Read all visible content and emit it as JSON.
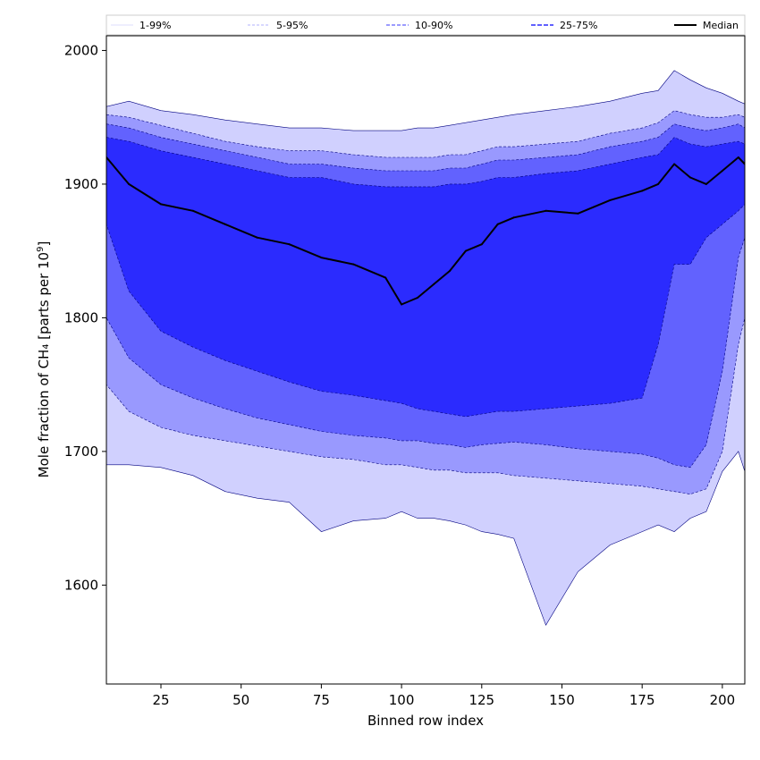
{
  "chart_data": {
    "type": "area",
    "title": "",
    "xlabel": "Binned row index",
    "ylabel_main": "Mole fraction of CH₄ [parts per 10",
    "ylabel_sup": "9",
    "ylabel_tail": "]",
    "xlim": [
      8,
      207
    ],
    "ylim": [
      1526,
      2011
    ],
    "xticks": [
      25,
      50,
      75,
      100,
      125,
      150,
      175,
      200
    ],
    "yticks": [
      1600,
      1700,
      1800,
      1900,
      2000
    ],
    "legend_position": "top",
    "colors": {
      "band_1_99": "#d0d0fe",
      "band_5_95": "#9999fe",
      "band_10_90": "#6262fe",
      "band_25_75": "#2b2bfe",
      "median": "#000000",
      "edge": "#000080"
    },
    "series": [
      {
        "name": "1-99%",
        "role": "band"
      },
      {
        "name": "5-95%",
        "role": "band"
      },
      {
        "name": "10-90%",
        "role": "band"
      },
      {
        "name": "25-75%",
        "role": "band"
      },
      {
        "name": "Median",
        "role": "line"
      }
    ],
    "x": [
      8,
      15,
      25,
      35,
      45,
      55,
      65,
      75,
      85,
      95,
      100,
      105,
      110,
      115,
      120,
      125,
      130,
      135,
      145,
      155,
      165,
      175,
      180,
      185,
      190,
      195,
      200,
      205,
      207
    ],
    "median": [
      1920,
      1900,
      1885,
      1880,
      1870,
      1860,
      1855,
      1845,
      1840,
      1830,
      1810,
      1815,
      1825,
      1835,
      1850,
      1855,
      1870,
      1875,
      1880,
      1878,
      1888,
      1895,
      1900,
      1915,
      1905,
      1900,
      1910,
      1920,
      1915
    ],
    "p75": [
      1935,
      1932,
      1925,
      1920,
      1915,
      1910,
      1905,
      1905,
      1900,
      1898,
      1898,
      1898,
      1898,
      1900,
      1900,
      1902,
      1905,
      1905,
      1908,
      1910,
      1915,
      1920,
      1922,
      1935,
      1930,
      1928,
      1930,
      1932,
      1930
    ],
    "p25": [
      1870,
      1820,
      1790,
      1778,
      1768,
      1760,
      1752,
      1745,
      1742,
      1738,
      1736,
      1732,
      1730,
      1728,
      1726,
      1728,
      1730,
      1730,
      1732,
      1734,
      1736,
      1740,
      1780,
      1840,
      1840,
      1860,
      1870,
      1880,
      1885
    ],
    "p90": [
      1945,
      1942,
      1935,
      1930,
      1925,
      1920,
      1915,
      1915,
      1912,
      1910,
      1910,
      1910,
      1910,
      1912,
      1912,
      1915,
      1918,
      1918,
      1920,
      1922,
      1928,
      1932,
      1935,
      1945,
      1942,
      1940,
      1942,
      1945,
      1942
    ],
    "p10": [
      1800,
      1770,
      1750,
      1740,
      1732,
      1725,
      1720,
      1715,
      1712,
      1710,
      1708,
      1708,
      1706,
      1705,
      1703,
      1705,
      1706,
      1707,
      1705,
      1702,
      1700,
      1698,
      1695,
      1690,
      1688,
      1705,
      1760,
      1845,
      1860
    ],
    "p95": [
      1952,
      1950,
      1944,
      1938,
      1932,
      1928,
      1925,
      1925,
      1922,
      1920,
      1920,
      1920,
      1920,
      1922,
      1922,
      1925,
      1928,
      1928,
      1930,
      1932,
      1938,
      1942,
      1946,
      1955,
      1952,
      1950,
      1950,
      1952,
      1950
    ],
    "p5": [
      1750,
      1730,
      1718,
      1712,
      1708,
      1704,
      1700,
      1696,
      1694,
      1690,
      1690,
      1688,
      1686,
      1686,
      1684,
      1684,
      1684,
      1682,
      1680,
      1678,
      1676,
      1674,
      1672,
      1670,
      1668,
      1672,
      1700,
      1780,
      1800
    ],
    "p99": [
      1958,
      1962,
      1955,
      1952,
      1948,
      1945,
      1942,
      1942,
      1940,
      1940,
      1940,
      1942,
      1942,
      1944,
      1946,
      1948,
      1950,
      1952,
      1955,
      1958,
      1962,
      1968,
      1970,
      1985,
      1978,
      1972,
      1968,
      1962,
      1960
    ],
    "p1": [
      1690,
      1690,
      1688,
      1682,
      1670,
      1665,
      1662,
      1640,
      1648,
      1650,
      1655,
      1650,
      1650,
      1648,
      1645,
      1640,
      1638,
      1635,
      1570,
      1610,
      1630,
      1640,
      1645,
      1640,
      1650,
      1655,
      1685,
      1700,
      1685
    ]
  }
}
